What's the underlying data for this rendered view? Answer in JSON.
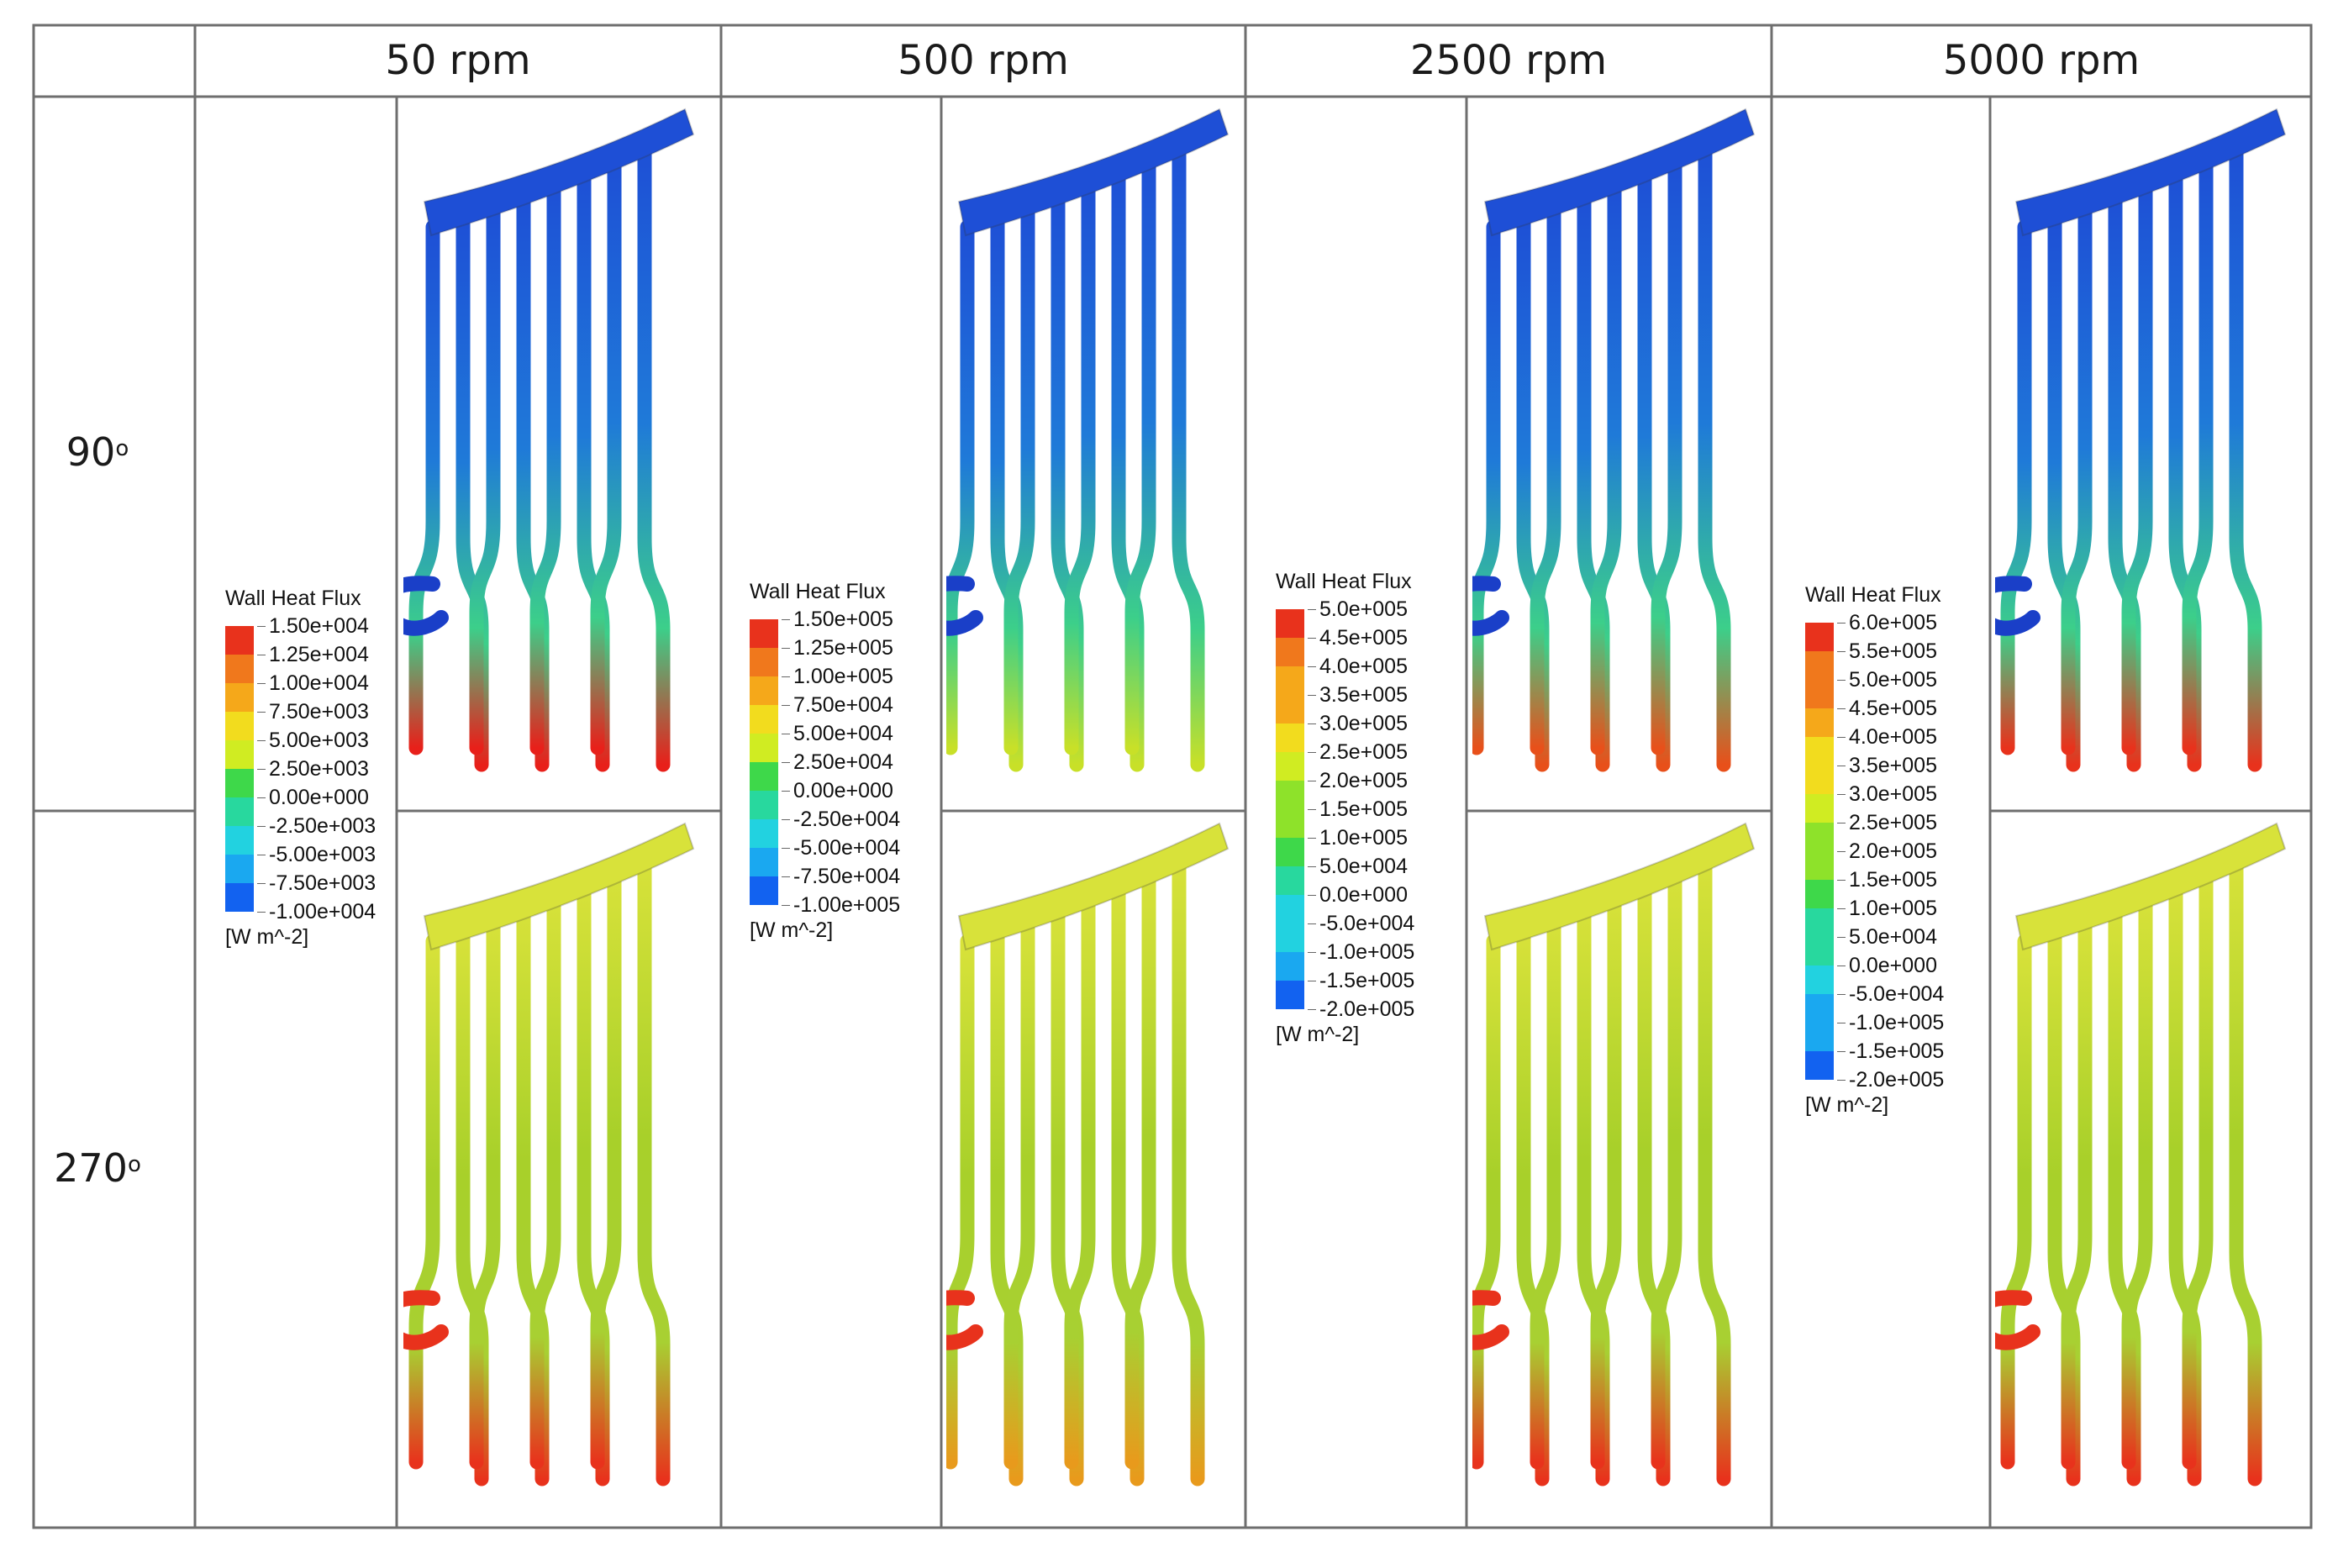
{
  "table": {
    "columns": [
      "50 rpm",
      "500 rpm",
      "2500 rpm",
      "5000 rpm"
    ],
    "rows": [
      {
        "label": "90",
        "unit": "o"
      },
      {
        "label": "270",
        "unit": "o"
      }
    ]
  },
  "legends": [
    {
      "title": "Wall Heat Flux",
      "unit": "[W m^-2]",
      "ticks": [
        "1.50e+004",
        "1.25e+004",
        "1.00e+004",
        "7.50e+003",
        "5.00e+003",
        "2.50e+003",
        "0.00e+000",
        "-2.50e+003",
        "-5.00e+003",
        "-7.50e+003",
        "-1.00e+004"
      ]
    },
    {
      "title": "Wall Heat Flux",
      "unit": "[W m^-2]",
      "ticks": [
        "1.50e+005",
        "1.25e+005",
        "1.00e+005",
        "7.50e+004",
        "5.00e+004",
        "2.50e+004",
        "0.00e+000",
        "-2.50e+004",
        "-5.00e+004",
        "-7.50e+004",
        "-1.00e+005"
      ]
    },
    {
      "title": "Wall Heat Flux",
      "unit": "[W m^-2]",
      "ticks": [
        "5.0e+005",
        "4.5e+005",
        "4.0e+005",
        "3.5e+005",
        "3.0e+005",
        "2.5e+005",
        "2.0e+005",
        "1.5e+005",
        "1.0e+005",
        "5.0e+004",
        "0.0e+000",
        "-5.0e+004",
        "-1.0e+005",
        "-1.5e+005",
        "-2.0e+005"
      ]
    },
    {
      "title": "Wall Heat Flux",
      "unit": "[W m^-2]",
      "ticks": [
        "6.0e+005",
        "5.5e+005",
        "5.0e+005",
        "4.5e+005",
        "4.0e+005",
        "3.5e+005",
        "3.0e+005",
        "2.5e+005",
        "2.0e+005",
        "1.5e+005",
        "1.0e+005",
        "5.0e+004",
        "0.0e+000",
        "-5.0e+004",
        "-1.0e+005",
        "-1.5e+005",
        "-2.0e+005"
      ]
    }
  ],
  "colormap": [
    "#e8321c",
    "#f0781c",
    "#f5a81a",
    "#f2dc1e",
    "#d0ec22",
    "#8ee22a",
    "#3ed84a",
    "#28d89e",
    "#22d2e0",
    "#1aa8f0",
    "#1262f0"
  ],
  "renders": {
    "r90": {
      "pipe_color": "#1f7ad8",
      "header_color": "#1e4fd6",
      "lower_color": "#3ccf8a",
      "tip_colors": [
        "#e8201a",
        "#c8e028",
        "#e8501a",
        "#e8321c"
      ]
    },
    "r270": {
      "pipe_color": "#a8d02a",
      "header_color": "#d8e23a",
      "lower_color": "#a8d032",
      "tip_colors": [
        "#e8321c",
        "#e89a1c",
        "#e8321c",
        "#e8321c"
      ]
    }
  }
}
